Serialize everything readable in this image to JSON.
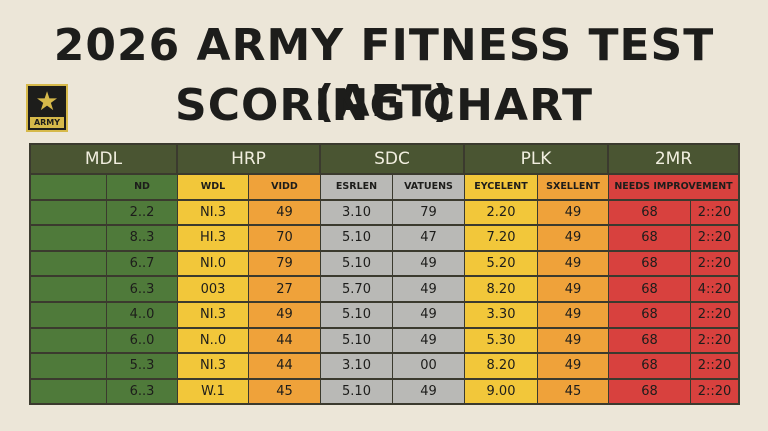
{
  "title": {
    "line1": "2026 ARMY FITNESS TEST (AFT)",
    "line2": "SCORING CHART"
  },
  "logo": {
    "icon": "army-star-icon",
    "text": "ARMY"
  },
  "table": {
    "headers": [
      "MDL",
      "HRP",
      "SDC",
      "PLK",
      "2MR"
    ],
    "subheaders": [
      "",
      "ND",
      "WDL",
      "VIDD",
      "ESRLEN",
      "VATUENS",
      "EYCELENT",
      "SXELLENT",
      "NEEDS IMPROVEMENT"
    ],
    "rows": [
      [
        "",
        "2..2",
        "NI.3",
        "49",
        "3.10",
        "79",
        "2.20",
        "49",
        "68",
        "2::20"
      ],
      [
        "",
        "8..3",
        "HI.3",
        "70",
        "5.10",
        "47",
        "7.20",
        "49",
        "68",
        "2::20"
      ],
      [
        "",
        "6..7",
        "NI.0",
        "79",
        "5.10",
        "49",
        "5.20",
        "49",
        "68",
        "2::20"
      ],
      [
        "",
        "6..3",
        "003",
        "27",
        "5.70",
        "49",
        "8.20",
        "49",
        "68",
        "4::20"
      ],
      [
        "",
        "4..0",
        "NI.3",
        "49",
        "5.10",
        "49",
        "3.30",
        "49",
        "68",
        "2::20"
      ],
      [
        "",
        "6..0",
        "N..0",
        "44",
        "5.10",
        "49",
        "5.30",
        "49",
        "68",
        "2::20"
      ],
      [
        "",
        "5..3",
        "NI.3",
        "44",
        "3.10",
        "00",
        "8.20",
        "49",
        "68",
        "2::20"
      ],
      [
        "",
        "6..3",
        "W.1",
        "45",
        "5.10",
        "49",
        "9.00",
        "45",
        "68",
        "2::20"
      ]
    ]
  },
  "colors": {
    "mdl": "#4f7a3a",
    "hrp_left": "#f2c73a",
    "hrp_right": "#efa23a",
    "sdc": "#b9b9b6",
    "plk_left": "#f2c73a",
    "plk_right": "#efa23a",
    "2mr": "#d8413e"
  }
}
